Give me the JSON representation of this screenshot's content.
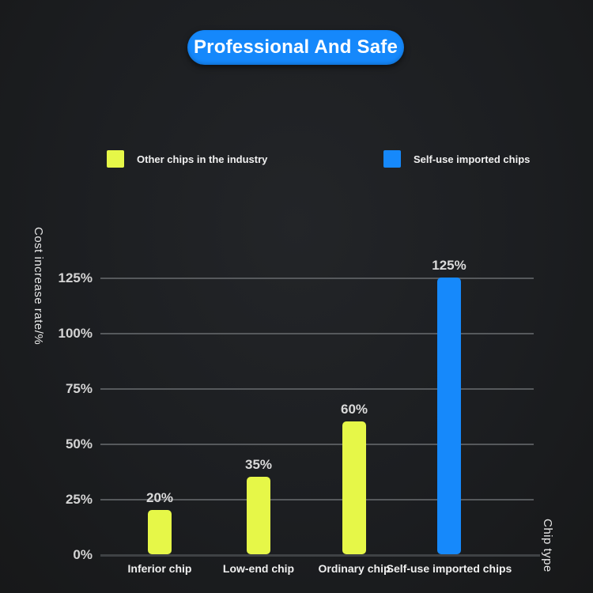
{
  "header": {
    "title": "Professional And Safe"
  },
  "colors": {
    "accent_blue": "#1689fb",
    "accent_yellow": "#e6f748",
    "background": "#1c1e21",
    "gridline": "#56595c",
    "tick_text": "#d4d4d4"
  },
  "chart_data": {
    "type": "bar",
    "title": "Professional And Safe",
    "categories": [
      "Inferior chip",
      "Low-end chip",
      "Ordinary chip",
      "Self-use imported chips"
    ],
    "values": [
      20,
      35,
      60,
      125
    ],
    "value_labels": [
      "20%",
      "35%",
      "60%",
      "125%"
    ],
    "bar_colors": [
      "#e6f748",
      "#e6f748",
      "#e6f748",
      "#1689fb"
    ],
    "xlabel": "Chip type",
    "ylabel": "Cost increase rate/%",
    "y_ticks": [
      {
        "value": 0,
        "label": "0%"
      },
      {
        "value": 25,
        "label": "25%"
      },
      {
        "value": 50,
        "label": "50%"
      },
      {
        "value": 75,
        "label": "75%"
      },
      {
        "value": 100,
        "label": "100%"
      },
      {
        "value": 125,
        "label": "125%"
      }
    ],
    "ylim": [
      0,
      125
    ],
    "grid": true,
    "legend_position": "top",
    "legend": [
      {
        "label": "Other chips in the industry",
        "color": "#e6f748"
      },
      {
        "label": "Self-use imported chips",
        "color": "#1689fb"
      }
    ]
  }
}
